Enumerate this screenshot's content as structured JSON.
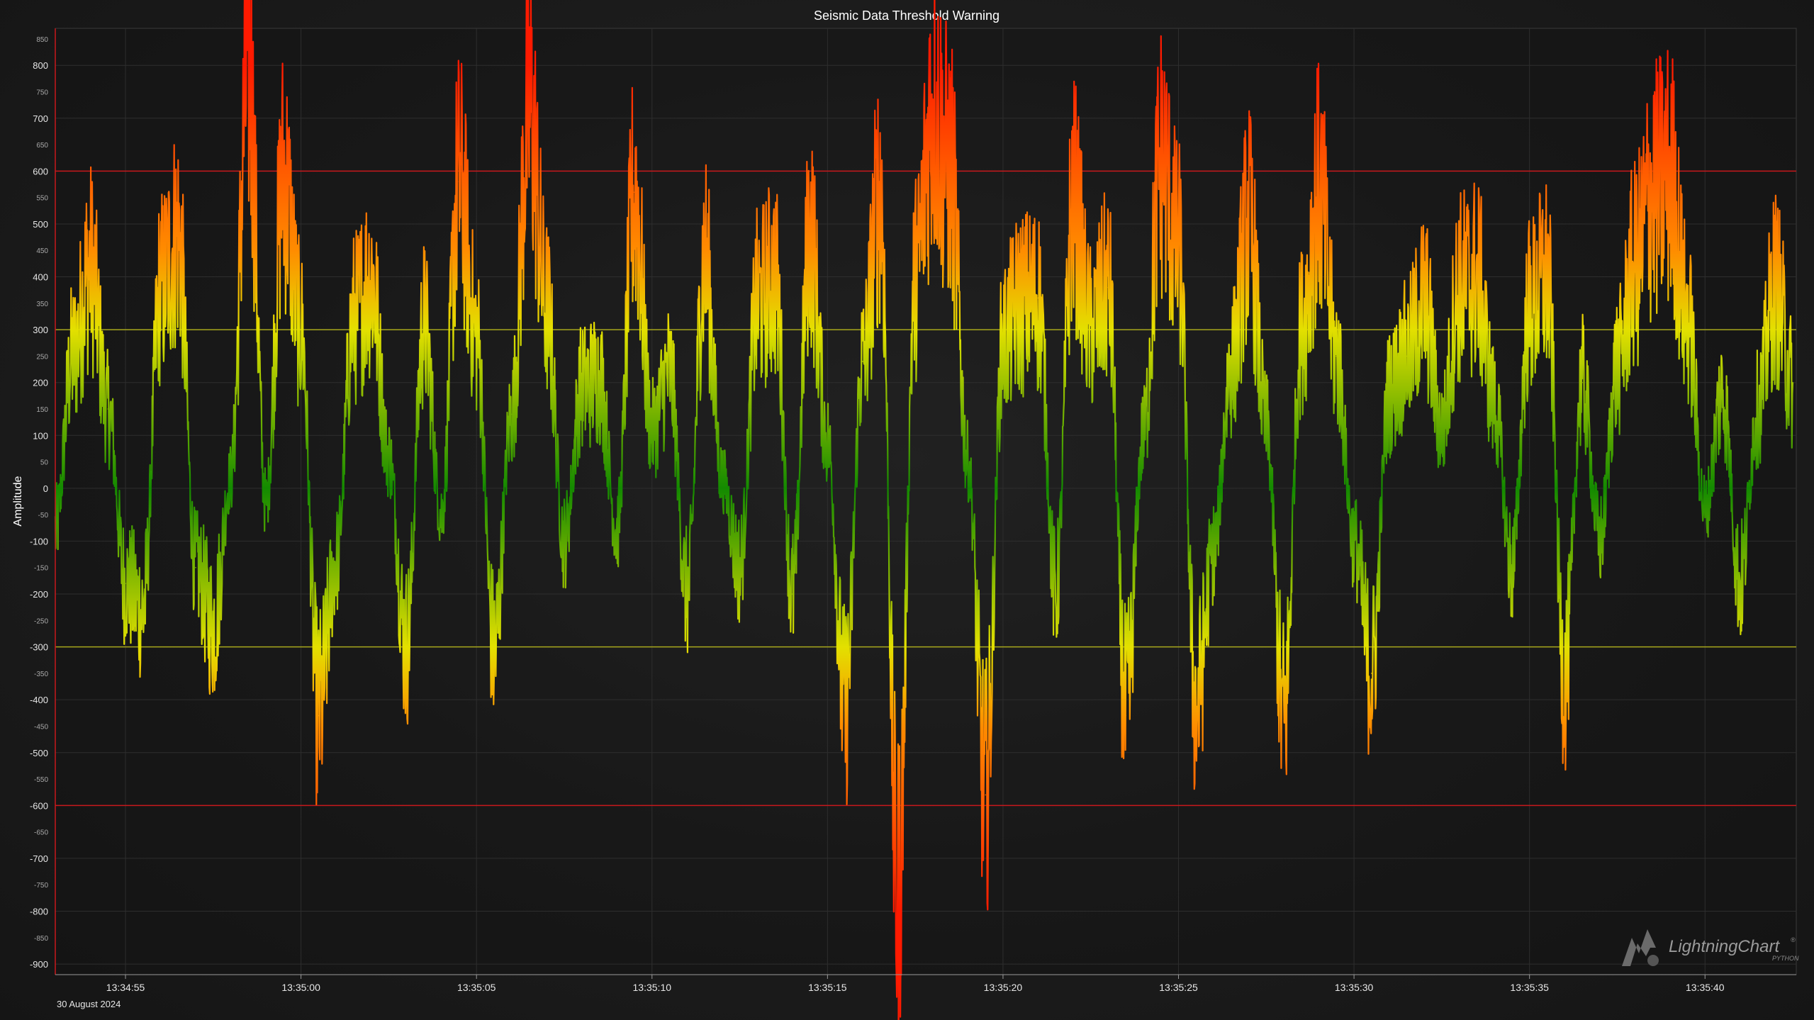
{
  "chart_data": {
    "type": "line",
    "title": "Seismic Data Threshold Warning",
    "ylabel": "Amplitude",
    "xlabel": "",
    "date_label": "30 August 2024",
    "ylim": [
      -920,
      870
    ],
    "xlim": [
      -2.0,
      47.6
    ],
    "y_major_ticks": [
      800,
      700,
      600,
      500,
      400,
      300,
      200,
      100,
      0,
      -100,
      -200,
      -300,
      -400,
      -500,
      -600,
      -700,
      -800,
      -900
    ],
    "y_minor_ticks": [
      850,
      750,
      650,
      550,
      450,
      350,
      250,
      150,
      50,
      -50,
      -150,
      -250,
      -350,
      -450,
      -550,
      -650,
      -750,
      -850
    ],
    "x_tick_labels": [
      "13:34:55",
      "13:35:00",
      "13:35:05",
      "13:35:10",
      "13:35:15",
      "13:35:20",
      "13:35:25",
      "13:35:30",
      "13:35:35",
      "13:35:40"
    ],
    "x_tick_values": [
      0,
      5,
      10,
      15,
      20,
      25,
      30,
      35,
      40,
      45
    ],
    "thresholds": [
      {
        "value": 600,
        "color": "#c8181c"
      },
      {
        "value": 300,
        "color": "#a7a71c"
      },
      {
        "value": -300,
        "color": "#a7a71c"
      },
      {
        "value": -600,
        "color": "#c8181c"
      }
    ],
    "gradient_colors": {
      "low": "#138a00",
      "mid": "#e3e000",
      "high": "#ff1a00"
    },
    "grid": true,
    "series": [
      {
        "x": [
          -2.0,
          -1.5,
          -1.0,
          -0.5,
          0.0,
          0.5,
          1.0,
          1.5,
          2.0,
          2.5,
          3.0,
          3.5,
          4.0,
          4.5,
          5.0,
          5.5,
          6.0,
          6.5,
          7.0,
          7.5,
          8.0,
          8.5,
          9.0,
          9.5,
          10.0,
          10.5,
          11.0,
          11.5,
          12.0,
          12.5,
          13.0,
          13.5,
          14.0,
          14.5,
          15.0,
          15.5,
          16.0,
          16.5,
          17.0,
          17.5,
          18.0,
          18.5,
          19.0,
          19.5,
          20.0,
          20.5,
          21.0,
          21.5,
          22.0,
          22.5,
          23.0,
          23.5,
          24.0,
          24.5,
          25.0,
          25.5,
          26.0,
          26.5,
          27.0,
          27.5,
          28.0,
          28.5,
          29.0,
          29.5,
          30.0,
          30.5,
          31.0,
          31.5,
          32.0,
          32.5,
          33.0,
          33.5,
          34.0,
          34.5,
          35.0,
          35.5,
          36.0,
          36.5,
          37.0,
          37.5,
          38.0,
          38.5,
          39.0,
          39.5,
          40.0,
          40.5,
          41.0,
          41.5,
          42.0,
          42.5,
          43.0,
          43.5,
          44.0,
          44.5,
          45.0,
          45.5,
          46.0,
          46.5,
          47.0,
          47.5
        ],
        "y": [
          -80,
          250,
          420,
          150,
          -180,
          -230,
          380,
          480,
          -150,
          -260,
          20,
          800,
          -30,
          590,
          300,
          -430,
          -140,
          320,
          400,
          60,
          -300,
          310,
          -50,
          580,
          290,
          -310,
          140,
          720,
          340,
          -100,
          190,
          210,
          -80,
          560,
          110,
          220,
          -200,
          440,
          20,
          -150,
          350,
          400,
          -200,
          480,
          90,
          -420,
          240,
          560,
          -780,
          400,
          720,
          600,
          50,
          -580,
          280,
          350,
          360,
          -200,
          540,
          300,
          380,
          -430,
          100,
          620,
          450,
          -420,
          -120,
          230,
          500,
          120,
          -440,
          300,
          560,
          250,
          -100,
          -350,
          180,
          250,
          350,
          110,
          380,
          400,
          160,
          -150,
          340,
          400,
          -360,
          200,
          -100,
          230,
          420,
          560,
          590,
          320,
          -40,
          180,
          -180,
          150,
          380,
          200
        ],
        "note_density": "dense"
      }
    ]
  },
  "branding": {
    "logo_main": "LightningChart",
    "logo_reg": "®",
    "logo_sub": "PYTHON"
  }
}
